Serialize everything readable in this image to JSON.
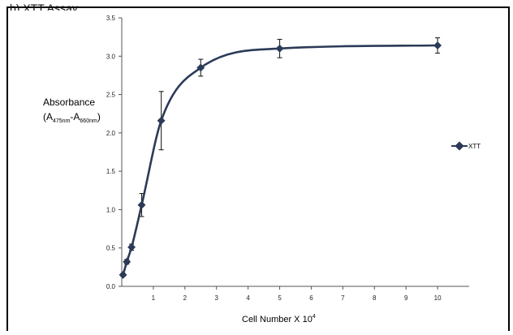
{
  "header": {
    "partial_title": "b) XTT Assay"
  },
  "chart_data": {
    "type": "line",
    "title": "",
    "xlabel": "Cell Number X 10",
    "xlabel_superscript": "4",
    "ylabel": "Absorbance",
    "ylabel_line2": {
      "open": "(A",
      "sub1": "475nm",
      "mid": "-A",
      "sub2": "660nm",
      "close": ")"
    },
    "xlim": [
      0,
      11
    ],
    "ylim": [
      0,
      3.5
    ],
    "xticks": [
      "1",
      "2",
      "3",
      "4",
      "5",
      "6",
      "7",
      "8",
      "9",
      "10"
    ],
    "yticks": [
      "0.0",
      "0.5",
      "1.0",
      "1.5",
      "2.0",
      "2.5",
      "3.0",
      "3.5"
    ],
    "grid": false,
    "legend": {
      "position": "right",
      "entries": [
        "XTT"
      ]
    },
    "series": [
      {
        "name": "XTT",
        "color": "#2b3a57",
        "x": [
          0.04,
          0.16,
          0.31,
          0.63,
          1.25,
          2.5,
          5,
          10
        ],
        "y": [
          0.15,
          0.32,
          0.51,
          1.06,
          2.16,
          2.85,
          3.1,
          3.14
        ],
        "error": [
          0.02,
          0.03,
          0.04,
          0.15,
          0.38,
          0.11,
          0.12,
          0.1
        ]
      }
    ]
  }
}
